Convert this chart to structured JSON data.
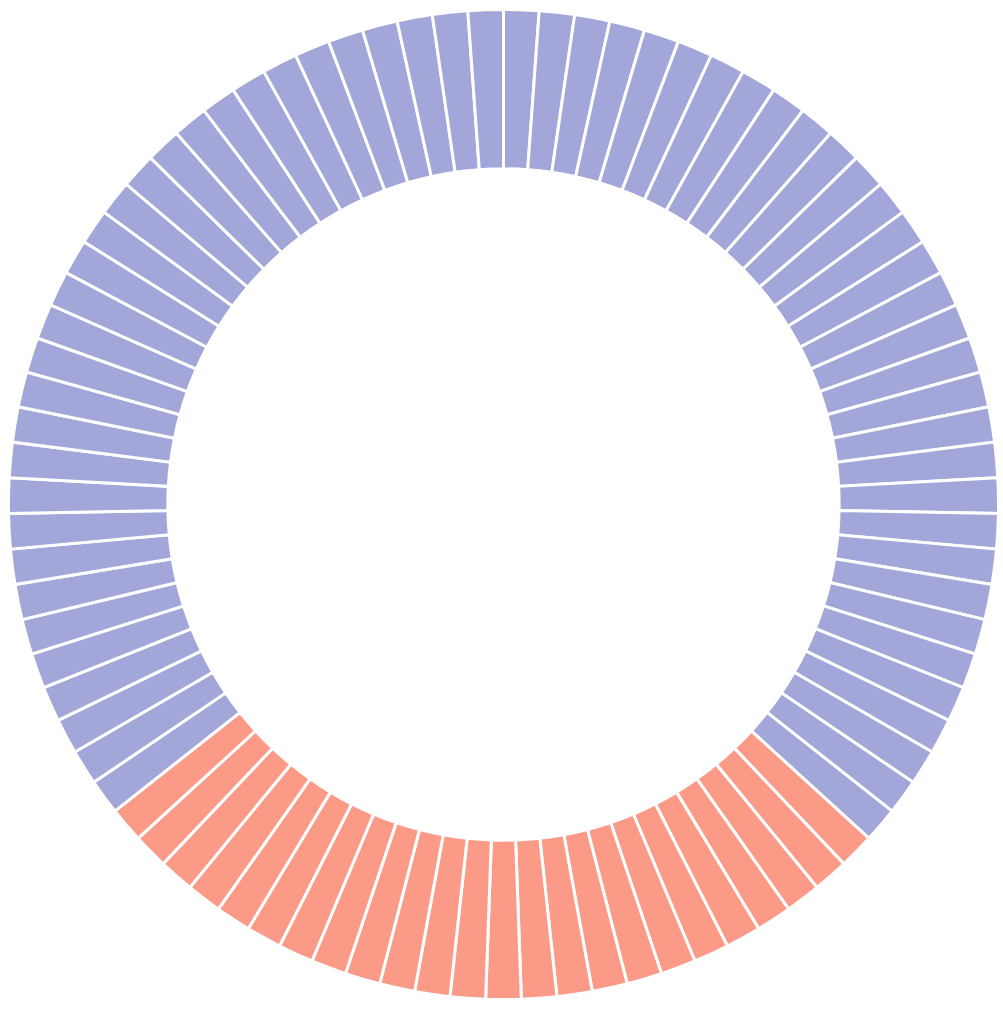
{
  "chart_data": {
    "type": "donut",
    "categories": [
      null,
      null,
      null,
      null,
      null,
      null,
      null,
      null,
      null,
      null,
      null,
      null,
      null,
      null,
      null,
      null,
      null,
      null,
      null,
      null,
      null,
      null,
      null,
      null,
      null,
      null,
      null,
      null,
      null,
      null,
      null,
      null,
      null,
      null,
      null,
      null,
      null,
      null,
      null,
      null,
      null,
      null,
      null,
      null,
      null,
      null,
      null,
      null,
      null,
      null,
      null,
      null,
      null,
      null,
      null,
      null,
      null,
      null,
      null,
      null,
      null,
      null,
      null,
      null,
      null,
      null,
      null,
      null,
      null,
      null,
      null,
      null,
      null,
      null,
      null,
      null,
      null,
      null,
      null,
      null,
      null,
      null,
      null,
      null,
      null,
      null,
      null
    ],
    "values": [
      1.1494,
      1.1494,
      1.1494,
      1.1494,
      1.1494,
      1.1494,
      1.1494,
      1.1494,
      1.1494,
      1.1494,
      1.1494,
      1.1494,
      1.1494,
      1.1494,
      1.1494,
      1.1494,
      1.1494,
      1.1494,
      1.1494,
      1.1494,
      1.1494,
      1.1494,
      1.1494,
      1.1494,
      1.1494,
      1.1494,
      1.1494,
      1.1494,
      1.1494,
      1.1494,
      1.1494,
      1.1494,
      1.1494,
      1.1494,
      1.1494,
      1.1494,
      1.1494,
      1.1494,
      1.1494,
      1.1494,
      1.1494,
      1.1494,
      1.1494,
      1.1494,
      1.1494,
      1.1494,
      1.1494,
      1.1494,
      1.1494,
      1.1494,
      1.1494,
      1.1494,
      1.1494,
      1.1494,
      1.1494,
      1.1494,
      1.1494,
      1.1494,
      1.1494,
      1.1494,
      1.1494,
      1.1494,
      1.1494,
      1.1494,
      1.1494,
      1.1494,
      1.1494,
      1.1494,
      1.1494,
      1.1494,
      1.1494,
      1.1494,
      1.1494,
      1.1494,
      1.1494,
      1.1494,
      1.1494,
      1.1494,
      1.1494,
      1.1494,
      1.1494,
      1.1494,
      1.1494,
      1.1494,
      1.1494,
      1.1494,
      1.1494
    ],
    "colors": [
      "#a3a6d9",
      "#a3a6d9",
      "#a3a6d9",
      "#a3a6d9",
      "#a3a6d9",
      "#a3a6d9",
      "#a3a6d9",
      "#a3a6d9",
      "#a3a6d9",
      "#a3a6d9",
      "#a3a6d9",
      "#a3a6d9",
      "#a3a6d9",
      "#a3a6d9",
      "#a3a6d9",
      "#a3a6d9",
      "#a3a6d9",
      "#a3a6d9",
      "#a3a6d9",
      "#a3a6d9",
      "#a3a6d9",
      "#a3a6d9",
      "#a3a6d9",
      "#a3a6d9",
      "#a3a6d9",
      "#a3a6d9",
      "#a3a6d9",
      "#a3a6d9",
      "#a3a6d9",
      "#a3a6d9",
      "#a3a6d9",
      "#a3a6d9",
      "#fc9a88",
      "#fc9a88",
      "#fc9a88",
      "#fc9a88",
      "#fc9a88",
      "#fc9a88",
      "#fc9a88",
      "#fc9a88",
      "#fc9a88",
      "#fc9a88",
      "#fc9a88",
      "#fc9a88",
      "#fc9a88",
      "#fc9a88",
      "#fc9a88",
      "#fc9a88",
      "#fc9a88",
      "#fc9a88",
      "#fc9a88",
      "#fc9a88",
      "#fc9a88",
      "#fc9a88",
      "#fc9a88",
      "#fc9a88",
      "#a3a6d9",
      "#a3a6d9",
      "#a3a6d9",
      "#a3a6d9",
      "#a3a6d9",
      "#a3a6d9",
      "#a3a6d9",
      "#a3a6d9",
      "#a3a6d9",
      "#a3a6d9",
      "#a3a6d9",
      "#a3a6d9",
      "#a3a6d9",
      "#a3a6d9",
      "#a3a6d9",
      "#a3a6d9",
      "#a3a6d9",
      "#a3a6d9",
      "#a3a6d9",
      "#a3a6d9",
      "#a3a6d9",
      "#a3a6d9",
      "#a3a6d9",
      "#a3a6d9",
      "#a3a6d9",
      "#a3a6d9",
      "#a3a6d9",
      "#a3a6d9",
      "#a3a6d9",
      "#a3a6d9",
      "#a3a6d9"
    ]
  }
}
